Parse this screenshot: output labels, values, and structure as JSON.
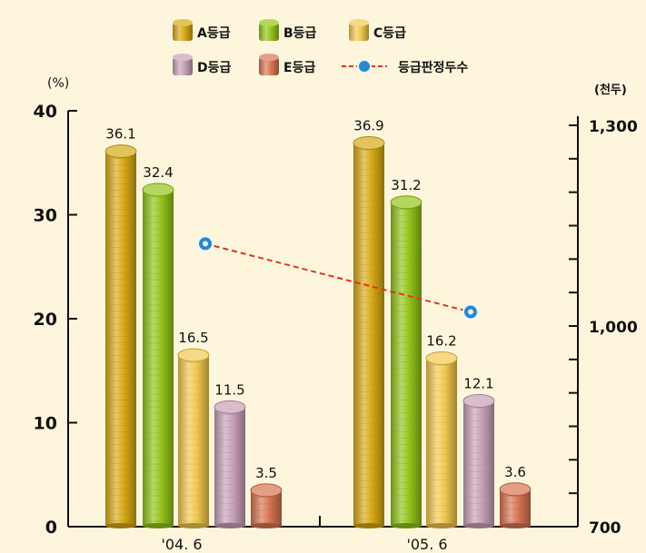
{
  "legend": {
    "items": [
      {
        "label": "A등급",
        "color": "#d7a916"
      },
      {
        "label": "B등급",
        "color": "#93c41b"
      },
      {
        "label": "C등급",
        "color": "#f1c84f"
      },
      {
        "label": "D등급",
        "color": "#c8a1b7"
      },
      {
        "label": "E등급",
        "color": "#d87552"
      },
      {
        "label": "등급판정두수",
        "color": "#e0341c"
      }
    ]
  },
  "chart_data": {
    "type": "bar",
    "categories": [
      "'04. 6",
      "'05. 6"
    ],
    "series": [
      {
        "name": "A등급",
        "values": [
          36.1,
          36.9
        ],
        "labels": [
          "36.1",
          "36.9"
        ],
        "color": "#d7a916"
      },
      {
        "name": "B등급",
        "values": [
          32.4,
          31.2
        ],
        "labels": [
          "32.4",
          "31.2"
        ],
        "color": "#93c41b"
      },
      {
        "name": "C등급",
        "values": [
          16.5,
          16.2
        ],
        "labels": [
          "16.5",
          "16.2"
        ],
        "color": "#f1c84f"
      },
      {
        "name": "D등급",
        "values": [
          11.5,
          12.1
        ],
        "labels": [
          "11.5",
          "12.1"
        ],
        "color": "#c8a1b7"
      },
      {
        "name": "E등급",
        "values": [
          3.5,
          3.6
        ],
        "labels": [
          "3.5",
          "3.6"
        ],
        "color": "#d87552"
      }
    ],
    "line_series": {
      "name": "등급판정두수",
      "values": [
        1123,
        1021
      ],
      "axis": "right",
      "color": "#e0341c"
    },
    "y_left": {
      "unit": "(%)",
      "ylim": [
        0,
        40
      ],
      "ticks": [
        "0",
        "10",
        "20",
        "30",
        "40"
      ]
    },
    "y_right": {
      "unit": "(천두)",
      "ylim": [
        700,
        1300
      ],
      "ticks": [
        "700",
        "1,000",
        "1,300"
      ]
    },
    "grid": false,
    "legend_position": "top"
  }
}
